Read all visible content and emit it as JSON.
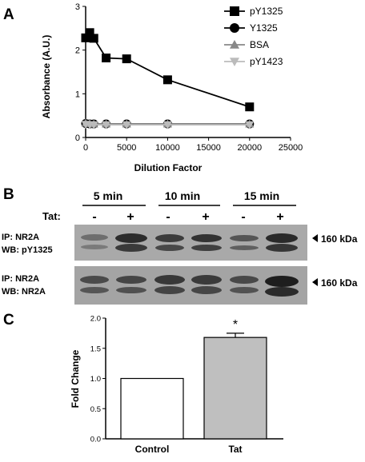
{
  "panel_labels": {
    "a": "A",
    "b": "B",
    "c": "C"
  },
  "blot": {
    "time_labels": [
      "5 min",
      "10 min",
      "15 min"
    ],
    "tat_label": "Tat:",
    "tat_signs": [
      "-",
      "+",
      "-",
      "+",
      "-",
      "+"
    ],
    "rows": [
      {
        "ip": "IP: NR2A",
        "wb": "WB: pY1325",
        "marker": "160 kDa"
      },
      {
        "ip": "IP: NR2A",
        "wb": "WB: NR2A",
        "marker": "160 kDa"
      }
    ]
  },
  "chart_data": [
    {
      "type": "line",
      "xlabel": "Dilution Factor",
      "ylabel": "Absorbance (A.U.)",
      "xlim": [
        0,
        25000
      ],
      "ylim": [
        0,
        3
      ],
      "xticks": [
        0,
        5000,
        10000,
        15000,
        20000,
        25000
      ],
      "yticks": [
        0,
        1,
        2,
        3
      ],
      "grid": false,
      "legend_position": "top-right",
      "series": [
        {
          "name": "pY1325",
          "marker": "square",
          "color": "#000000",
          "x": [
            0,
            500,
            1000,
            2500,
            5000,
            10000,
            20000
          ],
          "y": [
            2.28,
            2.4,
            2.27,
            1.82,
            1.8,
            1.32,
            0.7
          ]
        },
        {
          "name": "Y1325",
          "marker": "circle",
          "color": "#000000",
          "x": [
            0,
            500,
            1000,
            2500,
            5000,
            10000,
            20000
          ],
          "y": [
            0.32,
            0.31,
            0.31,
            0.31,
            0.31,
            0.31,
            0.31
          ]
        },
        {
          "name": "BSA",
          "marker": "triangle-up",
          "color": "#888888",
          "x": [
            0,
            500,
            1000,
            2500,
            5000,
            10000,
            20000
          ],
          "y": [
            0.33,
            0.32,
            0.31,
            0.31,
            0.31,
            0.31,
            0.31
          ]
        },
        {
          "name": "pY1423",
          "marker": "triangle-down",
          "color": "#bbbbbb",
          "x": [
            0,
            500,
            1000,
            2500,
            5000,
            10000,
            20000
          ],
          "y": [
            0.3,
            0.29,
            0.29,
            0.29,
            0.29,
            0.29,
            0.29
          ]
        }
      ]
    },
    {
      "type": "bar",
      "ylabel": "Fold Change",
      "ylim": [
        0,
        2.0
      ],
      "yticks": [
        "0.0",
        "0.5",
        "1.0",
        "1.5",
        "2.0"
      ],
      "categories": [
        "Control",
        "Tat"
      ],
      "values": [
        1.0,
        1.68
      ],
      "errors": [
        0,
        0.07
      ],
      "bar_colors": [
        "#ffffff",
        "#bfbfbf"
      ],
      "annotations": [
        "",
        "*"
      ]
    }
  ]
}
